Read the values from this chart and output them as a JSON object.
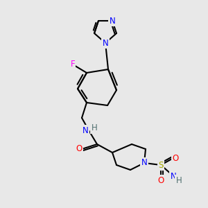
{
  "background_color": "#e8e8e8",
  "bond_color": "#000000",
  "bond_lw": 1.5,
  "font_size": 8.5,
  "colors": {
    "C": "#000000",
    "N": "#0000ff",
    "O": "#ff0000",
    "F": "#ff00ff",
    "S": "#aaaa00",
    "H": "#507070"
  }
}
